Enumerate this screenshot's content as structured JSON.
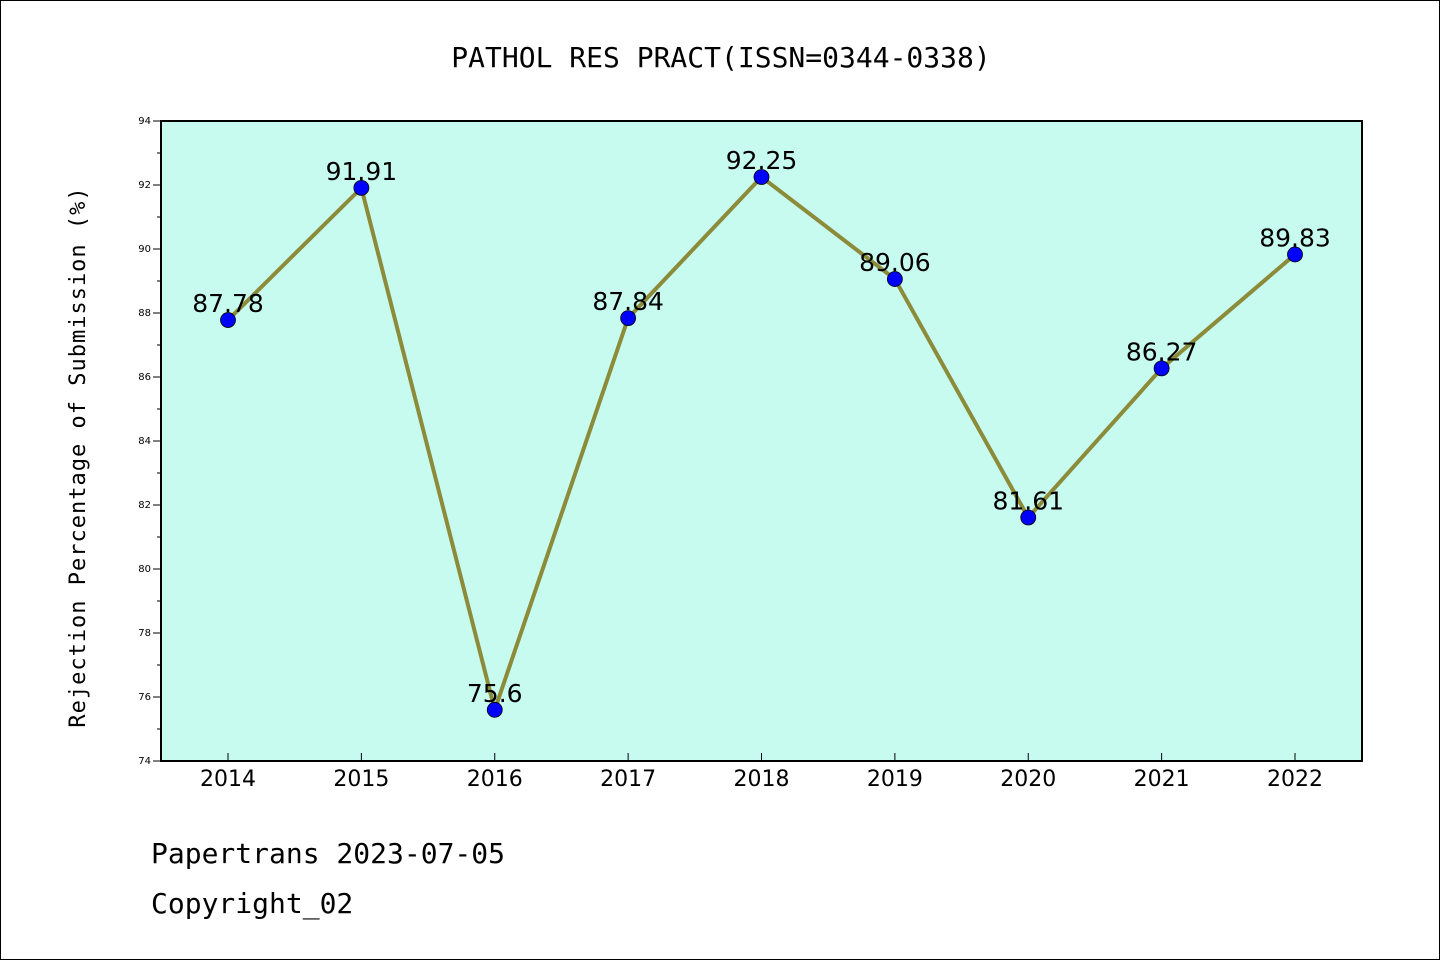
{
  "chart_data": {
    "type": "line",
    "title": "PATHOL RES PRACT(ISSN=0344-0338)",
    "xlabel": "",
    "ylabel": "Rejection Percentage of Submission (%)",
    "categories": [
      "2014",
      "2015",
      "2016",
      "2017",
      "2018",
      "2019",
      "2020",
      "2021",
      "2022"
    ],
    "series": [
      {
        "values": [
          87.78,
          91.91,
          75.6,
          87.84,
          92.25,
          89.06,
          81.61,
          86.27,
          89.83
        ],
        "labels": [
          "87.78",
          "91.91",
          "75.6",
          "87.84",
          "92.25",
          "89.06",
          "81.61",
          "86.27",
          "89.83"
        ]
      }
    ],
    "ylim": [
      74,
      94
    ],
    "yticks": [
      "74",
      "76",
      "78",
      "80",
      "82",
      "84",
      "86",
      "88",
      "90",
      "92",
      "94"
    ],
    "grid": false,
    "colors": {
      "plot_background": "#c8fbef",
      "line": "#8b8b3a",
      "marker": "#0000ff"
    }
  },
  "footer": {
    "line1": "Papertrans 2023-07-05",
    "line2": "Copyright_02"
  }
}
